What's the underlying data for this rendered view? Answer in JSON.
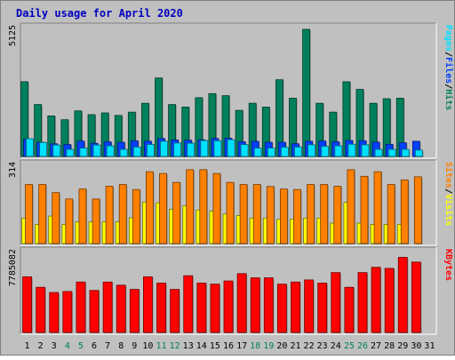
{
  "colors": {
    "hits": "#00805C",
    "files": "#0040FF",
    "pages": "#00E0FF",
    "visits": "#FFFF00",
    "sites": "#FF8000",
    "kbytes": "#FF0000",
    "title": "#0000C0",
    "panel_bg": "#C0C0C0"
  },
  "chart_data": {
    "type": "bar",
    "title": "Daily usage for April 2020",
    "days": [
      1,
      2,
      3,
      4,
      5,
      6,
      7,
      8,
      9,
      10,
      11,
      12,
      13,
      14,
      15,
      16,
      17,
      18,
      19,
      20,
      21,
      22,
      23,
      24,
      25,
      26,
      27,
      28,
      29,
      30,
      31
    ],
    "weekend_days": [
      4,
      5,
      11,
      12,
      18,
      19,
      25,
      26
    ],
    "panels": [
      {
        "id": "hits-files-pages",
        "max_label": "5125",
        "ylim": [
          0,
          5125
        ],
        "axis_legend": [
          "Pages",
          "/",
          "Files",
          "/",
          "Hits"
        ],
        "series": [
          {
            "name": "Hits",
            "color_key": "hits",
            "values": [
              2950,
              2050,
              1600,
              1450,
              1800,
              1650,
              1720,
              1620,
              1750,
              2100,
              3100,
              2050,
              1950,
              2320,
              2480,
              2400,
              1820,
              2100,
              1950,
              3030,
              2300,
              5020,
              2100,
              1750,
              2950,
              2650,
              2100,
              2280,
              2300,
              null,
              null
            ]
          },
          {
            "name": "Files",
            "color_key": "files",
            "values": [
              680,
              560,
              500,
              470,
              610,
              520,
              580,
              560,
              620,
              600,
              710,
              650,
              640,
              660,
              710,
              720,
              580,
              600,
              560,
              560,
              500,
              600,
              610,
              580,
              630,
              620,
              570,
              480,
              540,
              600,
              null
            ]
          },
          {
            "name": "Pages",
            "color_key": "pages",
            "values": [
              700,
              550,
              450,
              280,
              330,
              450,
              420,
              280,
              370,
              470,
              600,
              530,
              520,
              630,
              620,
              660,
              470,
              330,
              330,
              360,
              370,
              460,
              400,
              420,
              480,
              460,
              280,
              280,
              280,
              250,
              null
            ]
          }
        ]
      },
      {
        "id": "visits-sites",
        "max_label": "314",
        "ylim": [
          0,
          314
        ],
        "axis_legend": [
          "Sites",
          "/",
          "Visits"
        ],
        "series": [
          {
            "name": "Visits",
            "color_key": "visits",
            "values": [
              100,
              75,
              108,
              75,
              85,
              85,
              85,
              85,
              101,
              163,
              160,
              134,
              148,
              132,
              127,
              116,
              110,
              100,
              100,
              95,
              95,
              100,
              100,
              80,
              162,
              80,
              75,
              75,
              75,
              null,
              null
            ]
          },
          {
            "name": "Sites",
            "color_key": "sites",
            "values": [
              232,
              232,
              200,
              175,
              214,
              175,
              225,
              232,
              212,
              282,
              275,
              240,
              290,
              290,
              275,
              240,
              232,
              232,
              224,
              214,
              212,
              232,
              232,
              225,
              290,
              264,
              282,
              232,
              250,
              262,
              null
            ]
          }
        ]
      },
      {
        "id": "kbytes",
        "max_label": "7785082",
        "ylim": [
          0,
          7785082
        ],
        "axis_legend": [
          "KBytes"
        ],
        "series": [
          {
            "name": "KBytes",
            "color_key": "kbytes",
            "values": [
              5300000,
              4300000,
              3800000,
              3900000,
              4800000,
              4000000,
              4800000,
              4500000,
              4100000,
              5300000,
              4700000,
              4100000,
              5400000,
              4700000,
              4600000,
              4900000,
              5600000,
              5200000,
              5200000,
              4600000,
              4800000,
              5000000,
              4700000,
              5700000,
              4300000,
              5700000,
              6200000,
              6100000,
              7150000,
              6700000,
              null
            ]
          }
        ]
      }
    ]
  }
}
